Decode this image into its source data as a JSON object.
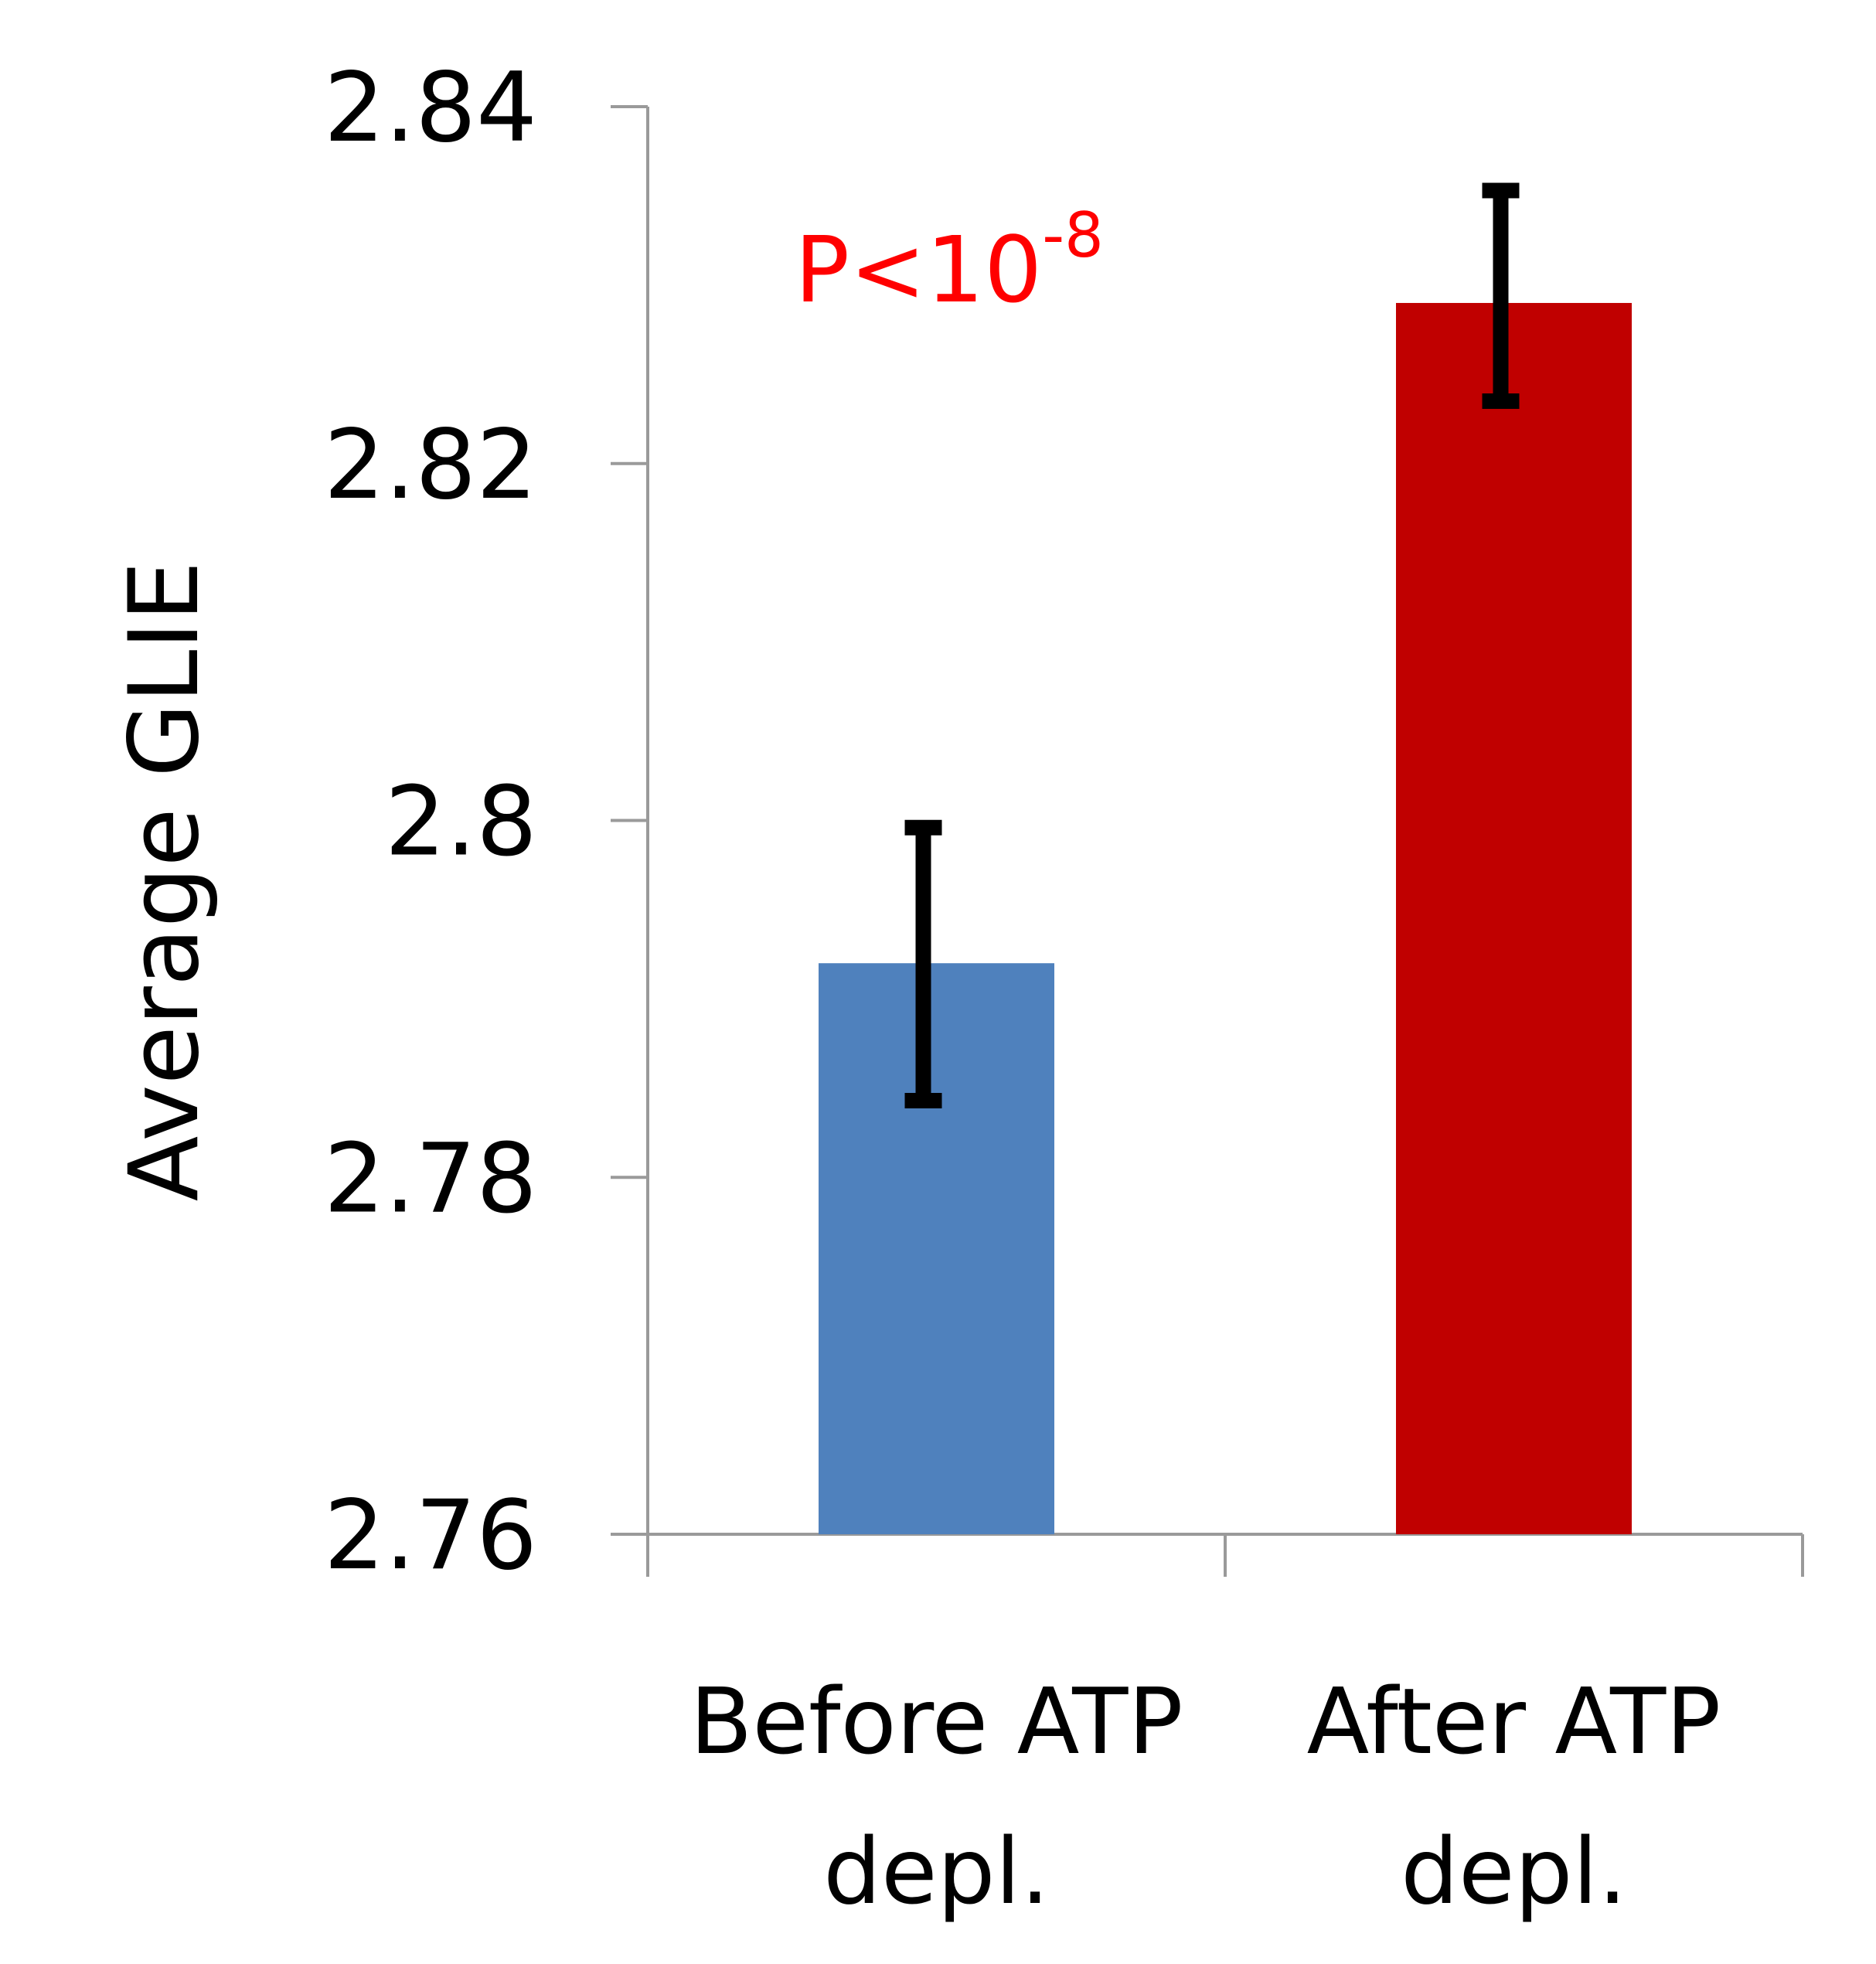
{
  "chart_data": {
    "type": "bar",
    "title": "",
    "xlabel": "",
    "ylabel": "Average GLIE",
    "ylim": [
      2.76,
      2.84
    ],
    "yticks": [
      "2.76",
      "2.78",
      "2.8",
      "2.82",
      "2.84"
    ],
    "categories": [
      {
        "line1": "Before ATP",
        "line2": "depl."
      },
      {
        "line1": "After ATP",
        "line2": "depl."
      }
    ],
    "values": [
      2.792,
      2.829
    ],
    "error_low": [
      2.7843,
      2.8235
    ],
    "error_high": [
      2.7996,
      2.8353
    ],
    "colors": [
      "#4f81bd",
      "#c00000"
    ],
    "annotation": {
      "base": "P<10",
      "exponent": "-8",
      "color": "#ff0000"
    }
  }
}
